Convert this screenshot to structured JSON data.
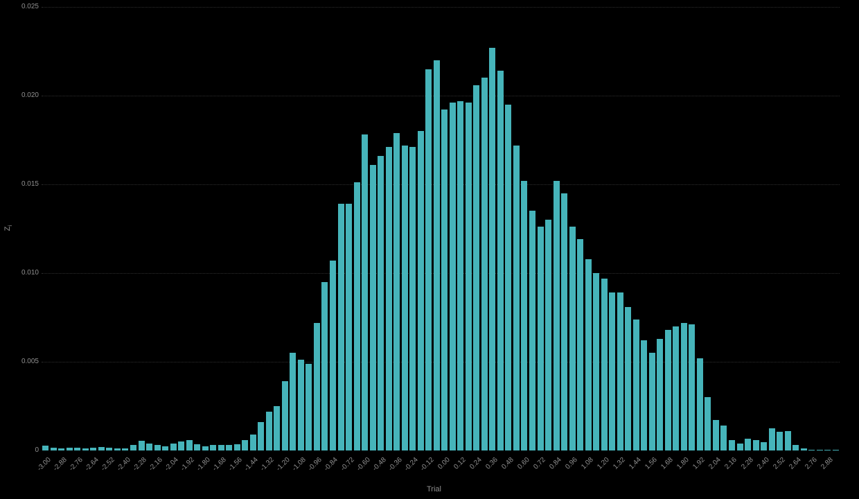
{
  "page": {
    "background": "#000000"
  },
  "chart_data": {
    "type": "bar",
    "title": "",
    "xlabel": "Trial",
    "ylabel_main": "Z",
    "ylabel_sub": "i",
    "legend": "none",
    "grid": "dotted horizontal lines at y-tick values",
    "bar_color": "#46b4ba",
    "text_color": "#909090",
    "gridline_color": "#2f2f2f",
    "background_color": "#000000",
    "ylim": [
      0,
      0.025
    ],
    "y_ticks": [
      {
        "value": 0.0,
        "label": "0"
      },
      {
        "value": 0.005,
        "label": "0.005"
      },
      {
        "value": 0.01,
        "label": "0.010"
      },
      {
        "value": 0.015,
        "label": "0.015"
      },
      {
        "value": 0.02,
        "label": "0.020"
      },
      {
        "value": 0.025,
        "label": "0.025"
      }
    ],
    "bin_start": -3.0,
    "bin_width": 0.06,
    "x_tick_every_n_bars": 2,
    "x_tick_labels": [
      "-3.00",
      "-2.88",
      "-2.76",
      "-2.64",
      "-2.52",
      "-2.40",
      "-2.28",
      "-2.16",
      "-2.04",
      "-1.92",
      "-1.80",
      "-1.68",
      "-1.56",
      "-1.44",
      "-1.32",
      "-1.20",
      "-1.08",
      "-0.96",
      "-0.84",
      "-0.72",
      "-0.60",
      "-0.48",
      "-0.36",
      "-0.24",
      "-0.12",
      "0.00",
      "0.12",
      "0.24",
      "0.36",
      "0.48",
      "0.60",
      "0.72",
      "0.84",
      "0.96",
      "1.08",
      "1.20",
      "1.32",
      "1.44",
      "1.56",
      "1.68",
      "1.80",
      "1.92",
      "2.04",
      "2.16",
      "2.28",
      "2.40",
      "2.52",
      "2.64",
      "2.76",
      "2.88"
    ],
    "values": [
      0.00027,
      0.00016,
      0.00012,
      0.00016,
      0.00016,
      0.00012,
      0.00016,
      0.0002,
      0.00016,
      0.00012,
      0.00012,
      0.0003,
      0.00055,
      0.0004,
      0.0003,
      0.00025,
      0.0004,
      0.0005,
      0.0006,
      0.00037,
      0.00023,
      0.0003,
      0.0003,
      0.00033,
      0.00037,
      0.0006,
      0.0009,
      0.0016,
      0.0022,
      0.0025,
      0.0039,
      0.0055,
      0.0051,
      0.0049,
      0.0072,
      0.0095,
      0.0107,
      0.0139,
      0.0139,
      0.0151,
      0.0178,
      0.0161,
      0.0166,
      0.0171,
      0.0179,
      0.0172,
      0.0171,
      0.018,
      0.0215,
      0.022,
      0.0192,
      0.0196,
      0.0197,
      0.0196,
      0.0206,
      0.021,
      0.0227,
      0.0214,
      0.0195,
      0.0172,
      0.0152,
      0.0135,
      0.0126,
      0.013,
      0.0152,
      0.0145,
      0.0126,
      0.0119,
      0.0108,
      0.01,
      0.0097,
      0.0089,
      0.0089,
      0.0081,
      0.0074,
      0.0062,
      0.0055,
      0.0063,
      0.0068,
      0.007,
      0.0072,
      0.0071,
      0.0052,
      0.003,
      0.0017,
      0.0014,
      0.0006,
      0.0004,
      0.00065,
      0.0006,
      0.00045,
      0.00125,
      0.00105,
      0.0011,
      0.0003,
      0.00012,
      5e-05,
      5e-05,
      5e-05,
      5e-05
    ]
  }
}
